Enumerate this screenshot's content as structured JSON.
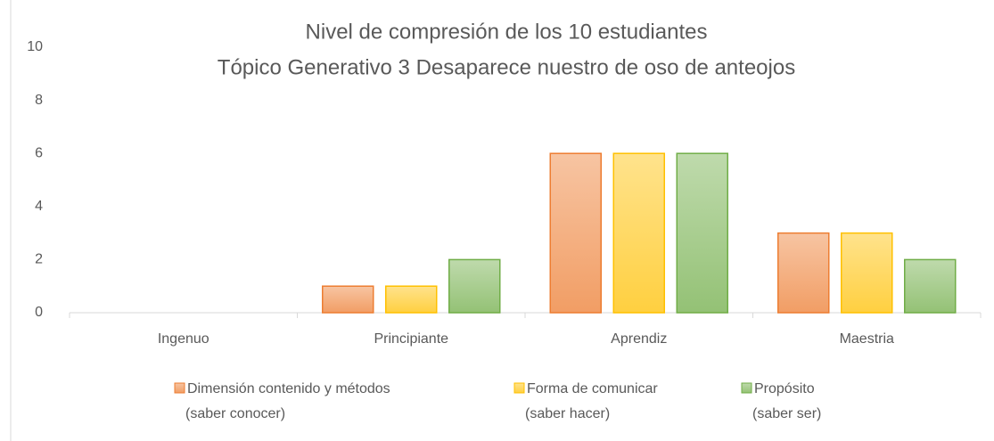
{
  "chart_data": {
    "type": "bar",
    "title": [
      "Nivel de compresión de los 10 estudiantes",
      "Tópico Generativo 3 Desaparece nuestro de oso de anteojos"
    ],
    "categories": [
      "Ingenuo",
      "Principiante",
      "Aprendiz",
      "Maestria"
    ],
    "series": [
      {
        "name": [
          "Dimensión contenido y métodos",
          "(saber conocer)"
        ],
        "color": "#ed7d31",
        "values": [
          0,
          1,
          6,
          3
        ]
      },
      {
        "name": [
          "Forma de comunicar",
          "(saber hacer)"
        ],
        "color": "#ffc000",
        "values": [
          0,
          1,
          6,
          3
        ]
      },
      {
        "name": [
          "Propósito",
          "(saber ser)"
        ],
        "color": "#70ad47",
        "values": [
          0,
          2,
          6,
          2
        ]
      }
    ],
    "ylim": [
      0,
      10
    ],
    "yticks": [
      0,
      2,
      4,
      6,
      8,
      10
    ],
    "grid": false,
    "legend": "bottom"
  }
}
